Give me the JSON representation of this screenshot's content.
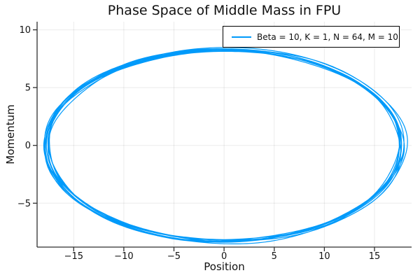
{
  "title": "Phase Space of Middle Mass in FPU",
  "axes": {
    "x": {
      "label": "Position",
      "min": -18.65,
      "max": 18.7,
      "ticks": [
        {
          "value": -15,
          "label": "−15"
        },
        {
          "value": -10,
          "label": "−10"
        },
        {
          "value": -5,
          "label": "−5"
        },
        {
          "value": 0,
          "label": "0"
        },
        {
          "value": 5,
          "label": "5"
        },
        {
          "value": 10,
          "label": "10"
        },
        {
          "value": 15,
          "label": "15"
        }
      ]
    },
    "y": {
      "label": "Momentum",
      "min": -8.8,
      "max": 10.7,
      "ticks": [
        {
          "value": 10,
          "label": "10"
        },
        {
          "value": 5,
          "label": "5"
        },
        {
          "value": 0,
          "label": "0"
        },
        {
          "value": -5,
          "label": "−5"
        }
      ]
    }
  },
  "legend": {
    "entries": [
      {
        "label": "Beta = 10, K = 1, N = 64, M = 10",
        "color": "#009AFA"
      }
    ]
  },
  "colors": {
    "series": "#009AFA",
    "spine": "#2f2f2f",
    "grid": "rgba(0,0,0,0.08)",
    "text": "#111111",
    "background": "#ffffff"
  },
  "chart_data": {
    "type": "line",
    "title": "Phase Space of Middle Mass in FPU",
    "xlabel": "Position",
    "ylabel": "Momentum",
    "xlim": [
      -18.65,
      18.7
    ],
    "ylim": [
      -8.8,
      10.7
    ],
    "grid": true,
    "legend_position": "top-right",
    "series": [
      {
        "name": "Beta = 10, K = 1, N = 64, M = 10",
        "color": "#009AFA",
        "description": "Quasi-periodic phase-space orbit of the middle mass: about 10 overlapping noisy elliptical loops centered at the origin",
        "orbit": {
          "center": [
            0,
            0
          ],
          "semi_axis_position": 17.75,
          "semi_axis_momentum": 8.3,
          "loops": 10,
          "points_per_loop": 300,
          "modulation": [
            {
              "freq": 0.23,
              "amp": 0.012
            },
            {
              "freq": 0.57,
              "amp": 0.009
            },
            {
              "freq": 3.13,
              "amp": 0.007
            },
            {
              "freq": 5.31,
              "amp": 0.005
            },
            {
              "freq": 8.17,
              "amp": 0.004
            }
          ],
          "seed": 11
        }
      }
    ]
  }
}
